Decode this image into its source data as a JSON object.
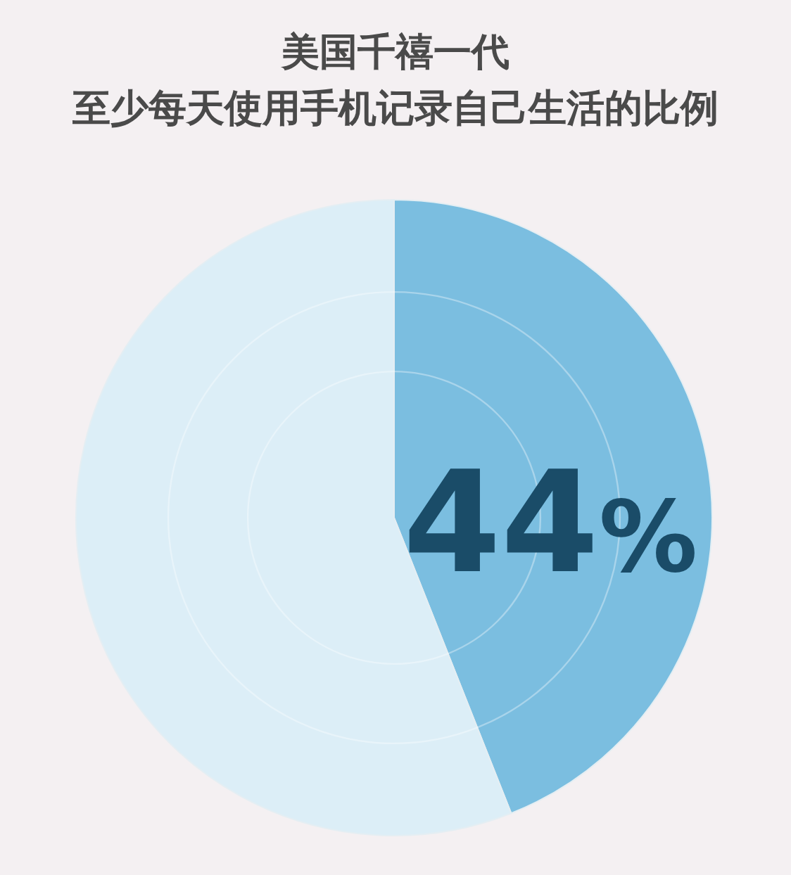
{
  "chart_data": {
    "type": "pie",
    "title": "美国千禧一代",
    "subtitle": "至少每天使用手机记录自己生活的比例",
    "categories": [
      null,
      null
    ],
    "values": [
      44,
      56
    ],
    "colors": [
      "#7bbee0",
      "#dceef7"
    ],
    "value_labels": [
      "44%",
      null
    ]
  }
}
